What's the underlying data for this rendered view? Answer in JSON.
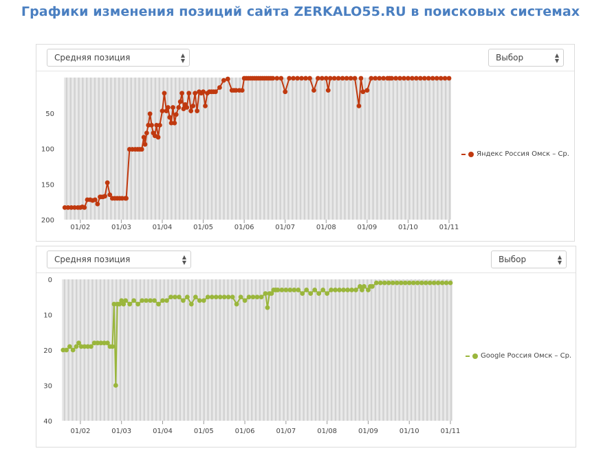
{
  "page_title": "Графики изменения позиций сайта ZERKALO55.RU в поисковых системах",
  "charts": [
    {
      "metric_select": "Средняя позиция",
      "choice_select": "Выбор",
      "legend": "Яндекс Россия Омск – Ср.",
      "color": "#c0390f"
    },
    {
      "metric_select": "Средняя позиция",
      "choice_select": "Выбор",
      "legend": "Google Россия Омск – Ср.",
      "color": "#9ab63c"
    }
  ],
  "chart_data": [
    {
      "type": "line",
      "title": "Яндекс Россия Омск – Ср.",
      "ylabel": "Средняя позиция",
      "y_inverted": true,
      "ylim": [
        0,
        200
      ],
      "yticks": [
        50,
        100,
        150,
        200
      ],
      "x_ticks": [
        "01/02",
        "01/03",
        "01/04",
        "01/05",
        "01/06",
        "01/07",
        "01/08",
        "01/09",
        "01/10",
        "01/11"
      ],
      "xlim": [
        0.6,
        10.05
      ],
      "series": [
        {
          "name": "Яндекс Россия Омск – Ср.",
          "x": [
            0.62,
            0.7,
            0.78,
            0.86,
            0.94,
            1.0,
            1.05,
            1.1,
            1.17,
            1.24,
            1.3,
            1.36,
            1.42,
            1.48,
            1.5,
            1.55,
            1.6,
            1.66,
            1.72,
            1.78,
            1.84,
            1.9,
            1.96,
            2.02,
            2.1,
            2.12,
            2.2,
            2.27,
            2.34,
            2.4,
            2.45,
            2.5,
            2.55,
            2.58,
            2.62,
            2.66,
            2.7,
            2.74,
            2.78,
            2.82,
            2.86,
            2.9,
            2.94,
            3.0,
            3.05,
            3.1,
            3.14,
            3.18,
            3.22,
            3.26,
            3.3,
            3.34,
            3.4,
            3.44,
            3.48,
            3.52,
            3.56,
            3.6,
            3.65,
            3.7,
            3.75,
            3.8,
            3.85,
            3.9,
            3.95,
            4.0,
            4.05,
            4.1,
            4.15,
            4.2,
            4.25,
            4.3,
            4.4,
            4.5,
            4.6,
            4.7,
            4.75,
            4.8,
            4.88,
            4.95,
            5.0,
            5.05,
            5.1,
            5.15,
            5.2,
            5.25,
            5.3,
            5.35,
            5.4,
            5.45,
            5.5,
            5.55,
            5.6,
            5.65,
            5.7,
            5.8,
            5.9,
            6.0,
            6.1,
            6.2,
            6.3,
            6.4,
            6.5,
            6.6,
            6.7,
            6.8,
            6.9,
            7.0,
            7.05,
            7.1,
            7.2,
            7.3,
            7.4,
            7.5,
            7.6,
            7.7,
            7.8,
            7.85,
            7.9,
            8.0,
            8.1,
            8.2,
            8.3,
            8.4,
            8.5,
            8.55,
            8.6,
            8.7,
            8.8,
            8.9,
            9.0,
            9.1,
            9.2,
            9.3,
            9.4,
            9.5,
            9.6,
            9.7,
            9.8,
            9.9,
            10.0
          ],
          "values": [
            183,
            183,
            183,
            183,
            183,
            183,
            182,
            183,
            172,
            172,
            173,
            172,
            178,
            168,
            168,
            168,
            167,
            148,
            165,
            170,
            170,
            170,
            170,
            170,
            170,
            170,
            101,
            101,
            101,
            101,
            101,
            101,
            84,
            94,
            78,
            67,
            51,
            67,
            78,
            82,
            67,
            84,
            67,
            47,
            22,
            47,
            42,
            56,
            64,
            42,
            64,
            52,
            42,
            34,
            22,
            44,
            38,
            42,
            22,
            47,
            40,
            22,
            47,
            20,
            22,
            20,
            40,
            22,
            20,
            20,
            20,
            20,
            14,
            4,
            2,
            18,
            18,
            18,
            18,
            18,
            1,
            1,
            1,
            1,
            1,
            1,
            1,
            1,
            1,
            1,
            1,
            1,
            1,
            1,
            1,
            1,
            1,
            20,
            1,
            1,
            1,
            1,
            1,
            1,
            18,
            1,
            1,
            1,
            18,
            1,
            1,
            1,
            1,
            1,
            1,
            1,
            40,
            1,
            20,
            18,
            1,
            1,
            1,
            1,
            1,
            1,
            1,
            1,
            1,
            1,
            1,
            1,
            1,
            1,
            1,
            1,
            1,
            1,
            1,
            1,
            1
          ]
        }
      ]
    },
    {
      "type": "line",
      "title": "Google Россия Омск – Ср.",
      "ylabel": "Средняя позиция",
      "y_inverted": true,
      "ylim": [
        0,
        40
      ],
      "yticks": [
        0,
        10,
        20,
        30,
        40
      ],
      "x_ticks": [
        "01/02",
        "01/03",
        "01/04",
        "01/05",
        "01/06",
        "01/07",
        "01/08",
        "01/09",
        "01/10",
        "01/11"
      ],
      "xlim": [
        0.55,
        10.05
      ],
      "series": [
        {
          "name": "Google Россия Омск – Ср.",
          "x": [
            0.58,
            0.66,
            0.74,
            0.82,
            0.9,
            0.96,
            1.02,
            1.1,
            1.18,
            1.26,
            1.34,
            1.42,
            1.5,
            1.58,
            1.66,
            1.72,
            1.78,
            1.82,
            1.86,
            1.9,
            1.95,
            2.0,
            2.05,
            2.1,
            2.2,
            2.3,
            2.4,
            2.5,
            2.6,
            2.7,
            2.8,
            2.9,
            3.0,
            3.1,
            3.2,
            3.3,
            3.4,
            3.5,
            3.6,
            3.7,
            3.8,
            3.9,
            4.0,
            4.1,
            4.2,
            4.3,
            4.4,
            4.5,
            4.6,
            4.7,
            4.8,
            4.9,
            5.0,
            5.1,
            5.2,
            5.3,
            5.4,
            5.5,
            5.55,
            5.6,
            5.65,
            5.7,
            5.75,
            5.8,
            5.9,
            6.0,
            6.1,
            6.2,
            6.3,
            6.4,
            6.5,
            6.6,
            6.7,
            6.8,
            6.9,
            7.0,
            7.1,
            7.2,
            7.3,
            7.4,
            7.5,
            7.6,
            7.7,
            7.8,
            7.85,
            7.9,
            8.0,
            8.05,
            8.1,
            8.2,
            8.3,
            8.4,
            8.5,
            8.6,
            8.7,
            8.8,
            8.9,
            9.0,
            9.1,
            9.2,
            9.3,
            9.4,
            9.5,
            9.6,
            9.7,
            9.8,
            9.9,
            10.0
          ],
          "values": [
            20,
            20,
            19,
            20,
            19,
            18,
            19,
            19,
            19,
            19,
            18,
            18,
            18,
            18,
            18,
            19,
            19,
            7,
            30,
            7,
            7,
            6,
            7,
            6,
            7,
            6,
            7,
            6,
            6,
            6,
            6,
            7,
            6,
            6,
            5,
            5,
            5,
            6,
            5,
            7,
            5,
            6,
            6,
            5,
            5,
            5,
            5,
            5,
            5,
            5,
            7,
            5,
            6,
            5,
            5,
            5,
            5,
            4,
            8,
            4,
            4,
            3,
            3,
            3,
            3,
            3,
            3,
            3,
            3,
            4,
            3,
            4,
            3,
            4,
            3,
            4,
            3,
            3,
            3,
            3,
            3,
            3,
            3,
            2,
            3,
            2,
            3,
            2,
            2,
            1,
            1,
            1,
            1,
            1,
            1,
            1,
            1,
            1,
            1,
            1,
            1,
            1,
            1,
            1,
            1,
            1,
            1,
            1
          ]
        }
      ]
    }
  ]
}
